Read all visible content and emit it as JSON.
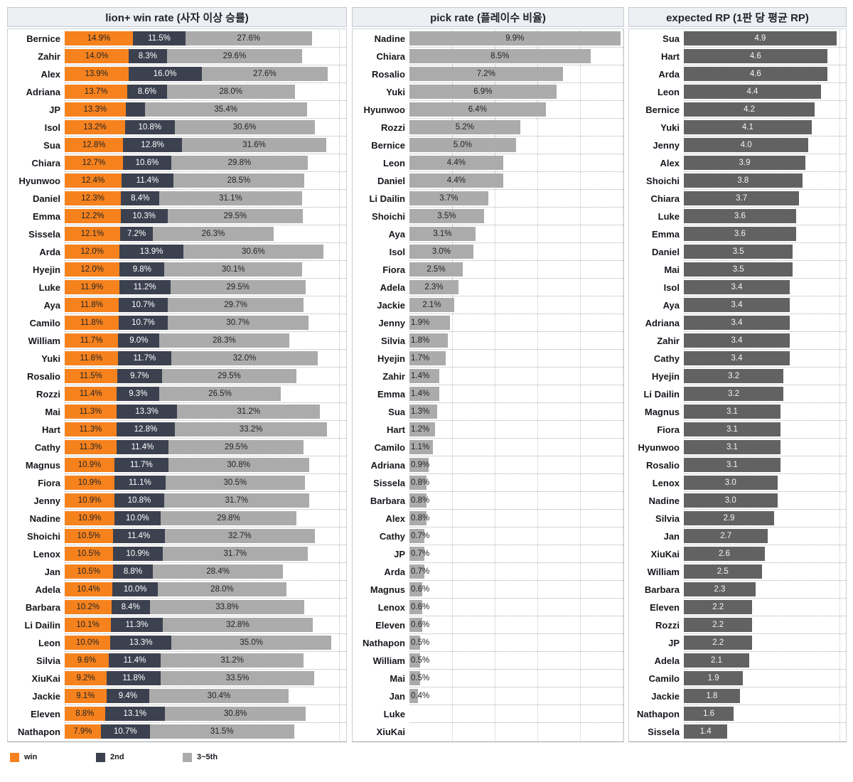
{
  "chart_data": [
    {
      "type": "bar",
      "orientation": "horizontal",
      "stacked": true,
      "title": "lion+ win rate (사자 이상 승률)",
      "legend_position": "bottom",
      "value_suffix": "%",
      "xlim": [
        0,
        61.5
      ],
      "gridlines": [
        60
      ],
      "categories": [
        "Bernice",
        "Zahir",
        "Alex",
        "Adriana",
        "JP",
        "Isol",
        "Sua",
        "Chiara",
        "Hyunwoo",
        "Daniel",
        "Emma",
        "Sissela",
        "Arda",
        "Hyejin",
        "Luke",
        "Aya",
        "Camilo",
        "William",
        "Yuki",
        "Rosalio",
        "Rozzi",
        "Mai",
        "Hart",
        "Cathy",
        "Magnus",
        "Fiora",
        "Jenny",
        "Nadine",
        "Shoichi",
        "Lenox",
        "Jan",
        "Adela",
        "Barbara",
        "Li Dailin",
        "Leon",
        "Silvia",
        "XiuKai",
        "Jackie",
        "Eleven",
        "Nathapon"
      ],
      "series": [
        {
          "name": "win",
          "key": "win",
          "color": "#F6821E",
          "label_color": "#232323",
          "values": [
            14.9,
            14.0,
            13.9,
            13.7,
            13.3,
            13.2,
            12.8,
            12.7,
            12.4,
            12.3,
            12.2,
            12.1,
            12.0,
            12.0,
            11.9,
            11.8,
            11.8,
            11.7,
            11.6,
            11.5,
            11.4,
            11.3,
            11.3,
            11.3,
            10.9,
            10.9,
            10.9,
            10.9,
            10.5,
            10.5,
            10.5,
            10.4,
            10.2,
            10.1,
            10.0,
            9.6,
            9.2,
            9.1,
            8.8,
            7.9
          ]
        },
        {
          "name": "2nd",
          "key": "2nd",
          "color": "#3C4150",
          "label_color": "#ffffff",
          "label_hidden_for": [
            "JP"
          ],
          "values": [
            11.5,
            8.3,
            16.0,
            8.6,
            4.2,
            10.8,
            12.8,
            10.6,
            11.4,
            8.4,
            10.3,
            7.2,
            13.9,
            9.8,
            11.2,
            10.7,
            10.7,
            9.0,
            11.7,
            9.7,
            9.3,
            13.3,
            12.8,
            11.4,
            11.7,
            11.1,
            10.8,
            10.0,
            11.4,
            10.9,
            8.8,
            10.0,
            8.4,
            11.3,
            13.3,
            11.4,
            11.8,
            9.4,
            13.1,
            10.7
          ]
        },
        {
          "name": "3~5th",
          "key": "3-5th",
          "color": "#ABABAB",
          "label_color": "#232323",
          "values": [
            27.6,
            29.6,
            27.6,
            28.0,
            35.4,
            30.6,
            31.6,
            29.8,
            28.5,
            31.1,
            29.5,
            26.3,
            30.6,
            30.1,
            29.5,
            29.7,
            30.7,
            28.3,
            32.0,
            29.5,
            26.5,
            31.2,
            33.2,
            29.5,
            30.8,
            30.5,
            31.7,
            29.8,
            32.7,
            31.7,
            28.4,
            28.0,
            33.8,
            32.8,
            35.0,
            31.2,
            33.5,
            30.4,
            30.8,
            31.5
          ]
        }
      ]
    },
    {
      "type": "bar",
      "orientation": "horizontal",
      "stacked": false,
      "title": "pick rate (플레이수 비율)",
      "value_suffix": "%",
      "xlim": [
        0,
        10.05
      ],
      "gridlines": [
        2,
        4,
        6,
        8,
        10
      ],
      "small_label_threshold": 2.0,
      "key": "pick-rate",
      "bar_color": "#ABABAB",
      "label_color": "#232323",
      "categories": [
        "Nadine",
        "Chiara",
        "Rosalio",
        "Yuki",
        "Hyunwoo",
        "Rozzi",
        "Bernice",
        "Leon",
        "Daniel",
        "Li Dailin",
        "Shoichi",
        "Aya",
        "Isol",
        "Fiora",
        "Adela",
        "Jackie",
        "Jenny",
        "Silvia",
        "Hyejin",
        "Zahir",
        "Emma",
        "Sua",
        "Hart",
        "Camilo",
        "Adriana",
        "Sissela",
        "Barbara",
        "Alex",
        "Cathy",
        "JP",
        "Arda",
        "Magnus",
        "Lenox",
        "Eleven",
        "Nathapon",
        "William",
        "Mai",
        "Jan",
        "Luke",
        "XiuKai"
      ],
      "values": [
        9.9,
        8.5,
        7.2,
        6.9,
        6.4,
        5.2,
        5.0,
        4.4,
        4.4,
        3.7,
        3.5,
        3.1,
        3.0,
        2.5,
        2.3,
        2.1,
        1.9,
        1.8,
        1.7,
        1.4,
        1.4,
        1.3,
        1.2,
        1.1,
        0.9,
        0.8,
        0.8,
        0.8,
        0.7,
        0.7,
        0.7,
        0.6,
        0.6,
        0.6,
        0.5,
        0.5,
        0.5,
        0.4,
        null,
        null
      ]
    },
    {
      "type": "bar",
      "orientation": "horizontal",
      "stacked": false,
      "title": "expected RP (1판 당 평균 RP)",
      "value_suffix": "",
      "xlim": [
        0,
        5.2
      ],
      "gridlines": [
        5
      ],
      "key": "expected-rp",
      "bar_color": "#626262",
      "label_color": "#f4f4f4",
      "categories": [
        "Sua",
        "Hart",
        "Arda",
        "Leon",
        "Bernice",
        "Yuki",
        "Jenny",
        "Alex",
        "Shoichi",
        "Chiara",
        "Luke",
        "Emma",
        "Daniel",
        "Mai",
        "Isol",
        "Aya",
        "Adriana",
        "Zahir",
        "Cathy",
        "Hyejin",
        "Li Dailin",
        "Magnus",
        "Fiora",
        "Hyunwoo",
        "Rosalio",
        "Lenox",
        "Nadine",
        "Silvia",
        "Jan",
        "XiuKai",
        "William",
        "Barbara",
        "Eleven",
        "Rozzi",
        "JP",
        "Adela",
        "Camilo",
        "Jackie",
        "Nathapon",
        "Sissela"
      ],
      "values": [
        4.9,
        4.6,
        4.6,
        4.4,
        4.2,
        4.1,
        4.0,
        3.9,
        3.8,
        3.7,
        3.6,
        3.6,
        3.5,
        3.5,
        3.4,
        3.4,
        3.4,
        3.4,
        3.4,
        3.2,
        3.2,
        3.1,
        3.1,
        3.1,
        3.1,
        3.0,
        3.0,
        2.9,
        2.7,
        2.6,
        2.5,
        2.3,
        2.2,
        2.2,
        2.2,
        2.1,
        1.9,
        1.8,
        1.6,
        1.4
      ]
    }
  ]
}
